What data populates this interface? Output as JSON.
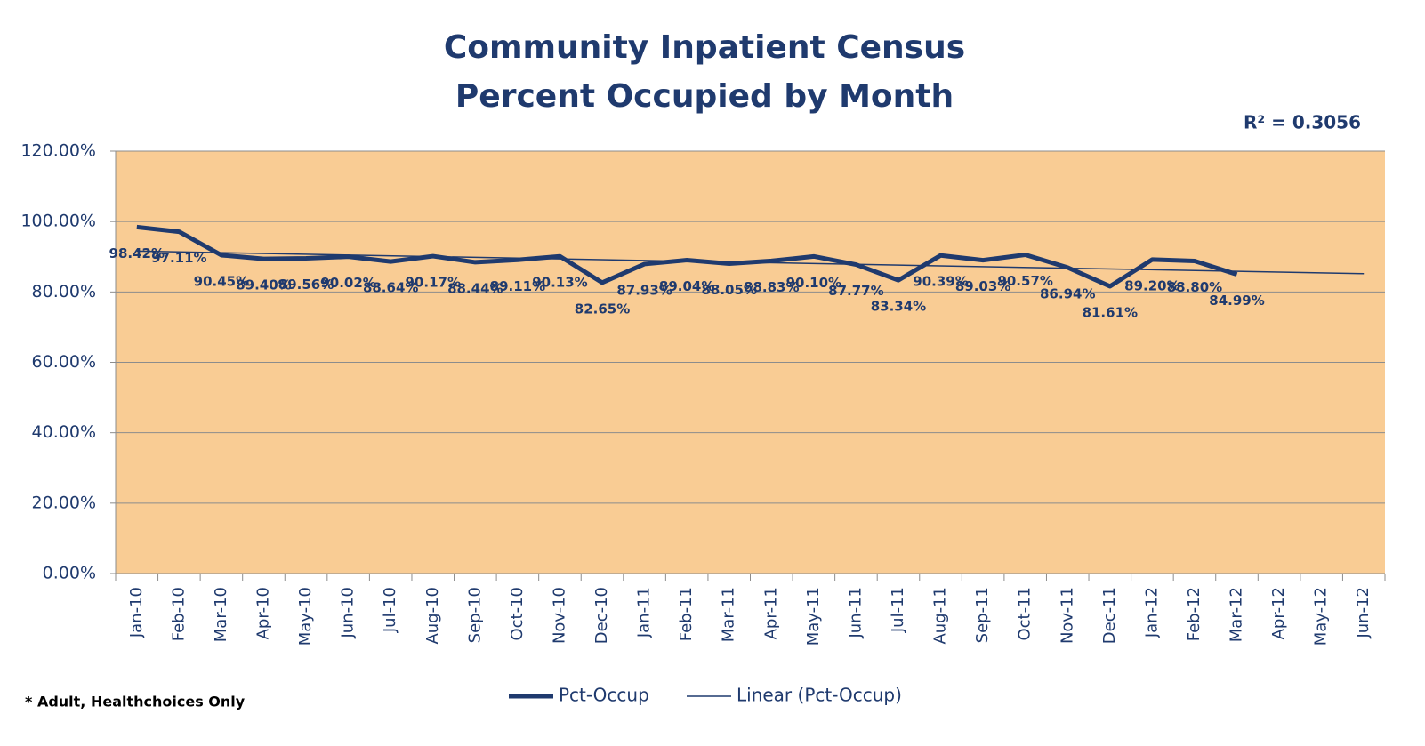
{
  "chart_data": {
    "type": "line",
    "title": "Community Inpatient Census",
    "subtitle": "Percent Occupied by Month",
    "annotation": "R² = 0.3056",
    "footnote": "* Adult, Healthchoices Only",
    "categories": [
      "Jan-10",
      "Feb-10",
      "Mar-10",
      "Apr-10",
      "May-10",
      "Jun-10",
      "Jul-10",
      "Aug-10",
      "Sep-10",
      "Oct-10",
      "Nov-10",
      "Dec-10",
      "Jan-11",
      "Feb-11",
      "Mar-11",
      "Apr-11",
      "May-11",
      "Jun-11",
      "Jul-11",
      "Aug-11",
      "Sep-11",
      "Oct-11",
      "Nov-11",
      "Dec-11",
      "Jan-12",
      "Feb-12",
      "Mar-12",
      "Apr-12",
      "May-12",
      "Jun-12"
    ],
    "series": [
      {
        "name": "Pct-Occup",
        "color": "#1f3a6e",
        "values": [
          98.42,
          97.11,
          90.45,
          89.4,
          89.56,
          90.02,
          88.64,
          90.17,
          88.44,
          89.11,
          90.13,
          82.65,
          87.93,
          89.04,
          88.05,
          88.83,
          90.1,
          87.77,
          83.34,
          90.39,
          89.03,
          90.57,
          86.94,
          81.61,
          89.2,
          88.8,
          84.99,
          null,
          null,
          null
        ],
        "value_labels": [
          "98.42%",
          "97.11%",
          "90.45%",
          "89.40%",
          "89.56%",
          "90.02%",
          "88.64%",
          "90.17%",
          "88.44%",
          "89.11%",
          "90.13%",
          "82.65%",
          "87.93%",
          "89.04%",
          "88.05%",
          "88.83%",
          "90.10%",
          "87.77%",
          "83.34%",
          "90.39%",
          "89.03%",
          "90.57%",
          "86.94%",
          "81.61%",
          "89.20%",
          "88.80%",
          "84.99%",
          null,
          null,
          null
        ]
      }
    ],
    "trendline": {
      "name": "Linear (Pct-Occup)",
      "color": "#1f3a6e",
      "start": 91.6,
      "end": 85.2
    },
    "ylim": [
      0,
      120
    ],
    "yticks": [
      {
        "value": 0,
        "label": "0.00%"
      },
      {
        "value": 20,
        "label": "20.00%"
      },
      {
        "value": 40,
        "label": "40.00%"
      },
      {
        "value": 60,
        "label": "60.00%"
      },
      {
        "value": 80,
        "label": "80.00%"
      },
      {
        "value": 100,
        "label": "100.00%"
      },
      {
        "value": 120,
        "label": "120.00%"
      }
    ],
    "grid": true,
    "plot_background": "#f9cc94"
  }
}
